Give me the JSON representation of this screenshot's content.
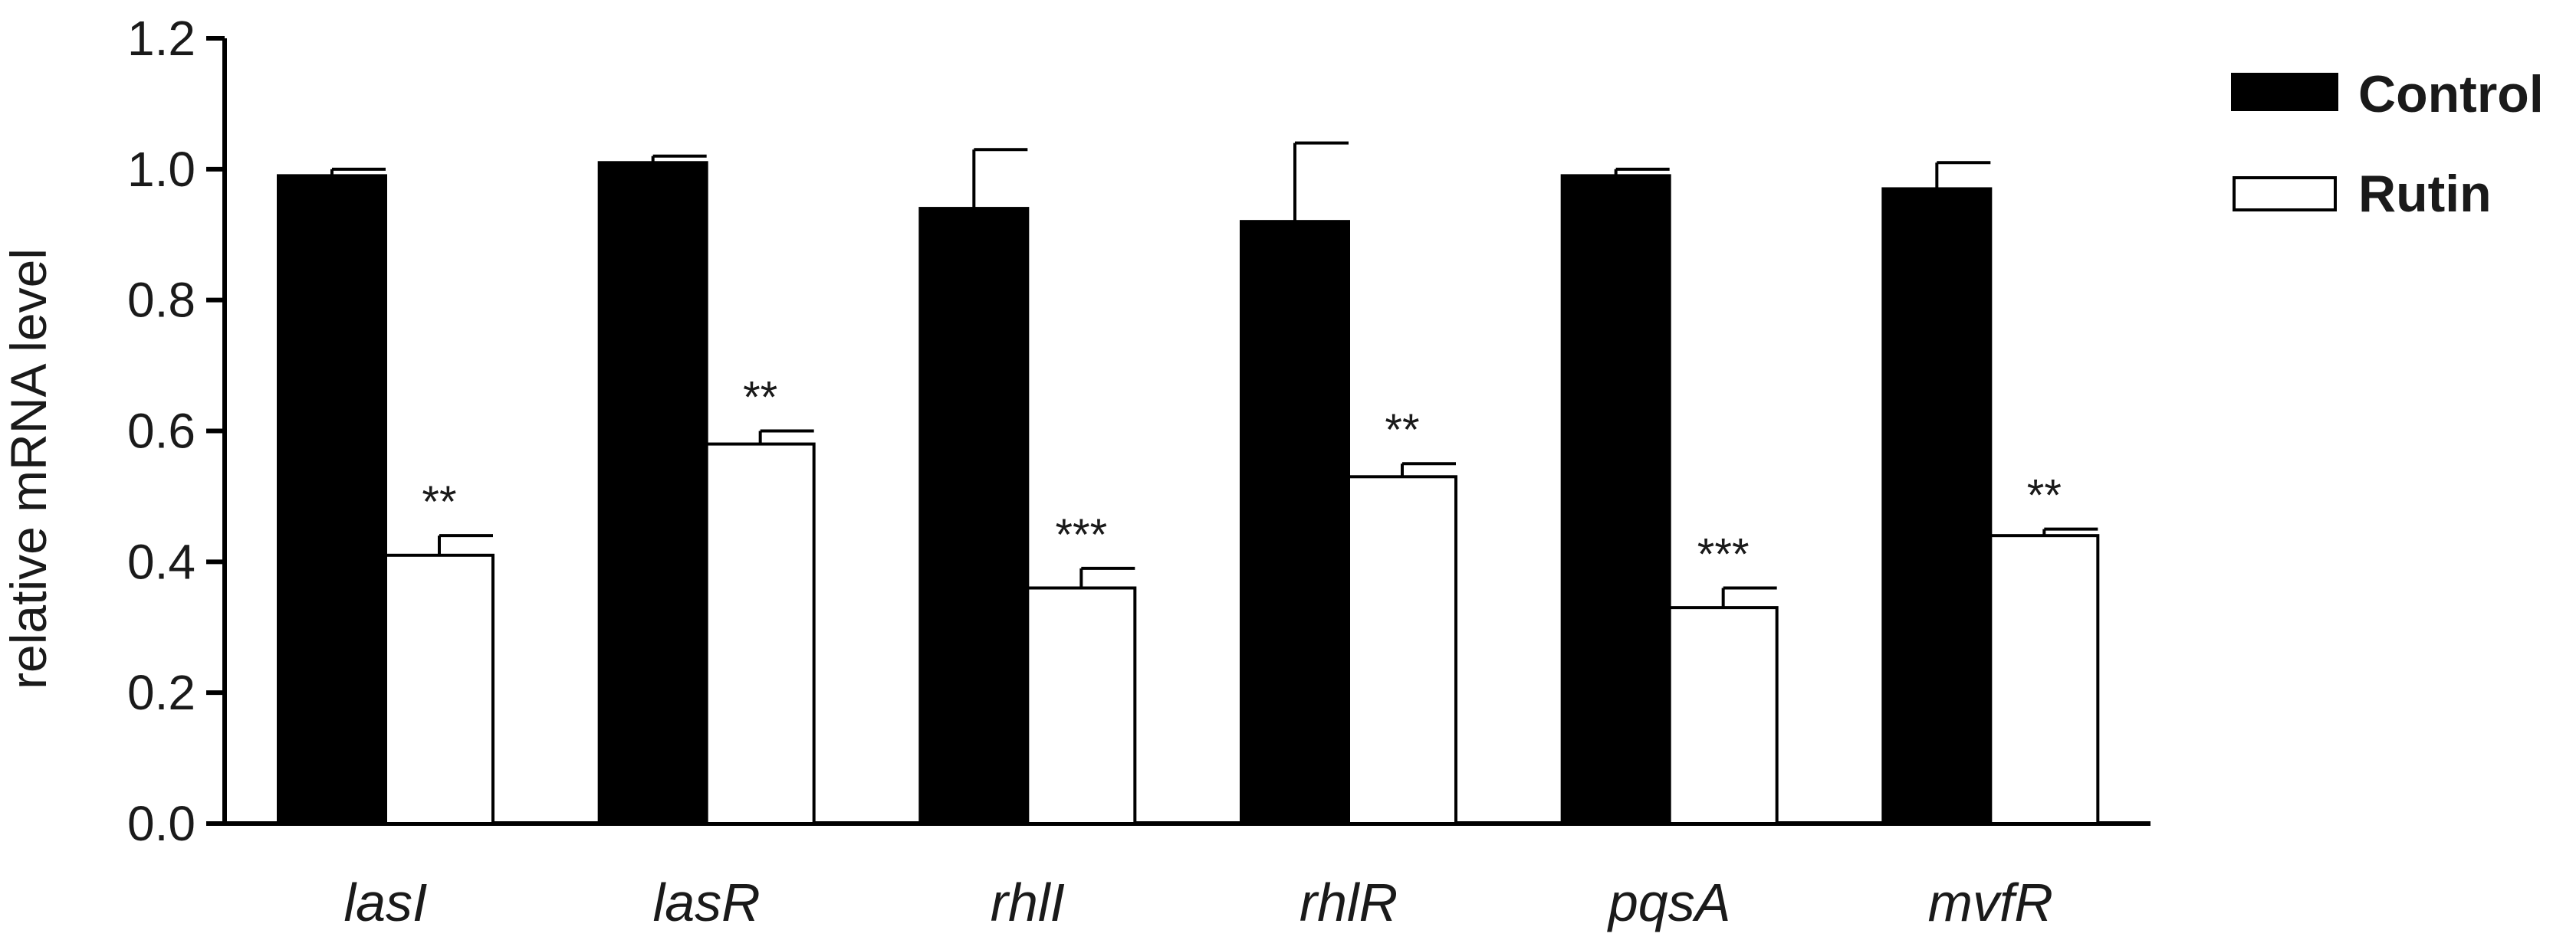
{
  "chart_data": {
    "type": "bar",
    "ylabel": "relative mRNA level",
    "xlabel": "",
    "ylim": [
      0,
      1.2
    ],
    "yticks": [
      "0.0",
      "0.2",
      "0.4",
      "0.6",
      "0.8",
      "1.0",
      "1.2"
    ],
    "categories": [
      "lasI",
      "lasR",
      "rhlI",
      "rhlR",
      "pqsA",
      "mvfR"
    ],
    "series": [
      {
        "name": "Control",
        "color": "#000000",
        "values": [
          0.99,
          1.01,
          0.94,
          0.92,
          0.99,
          0.97
        ],
        "error": [
          0.01,
          0.01,
          0.09,
          0.12,
          0.01,
          0.04
        ]
      },
      {
        "name": "Rutin",
        "color": "#ffffff",
        "values": [
          0.41,
          0.58,
          0.36,
          0.53,
          0.33,
          0.44
        ],
        "error": [
          0.03,
          0.02,
          0.03,
          0.02,
          0.03,
          0.01
        ]
      }
    ],
    "annotations": [
      "**",
      "**",
      "***",
      "**",
      "***",
      "**"
    ],
    "legend_position": "top-right",
    "grid": false
  }
}
